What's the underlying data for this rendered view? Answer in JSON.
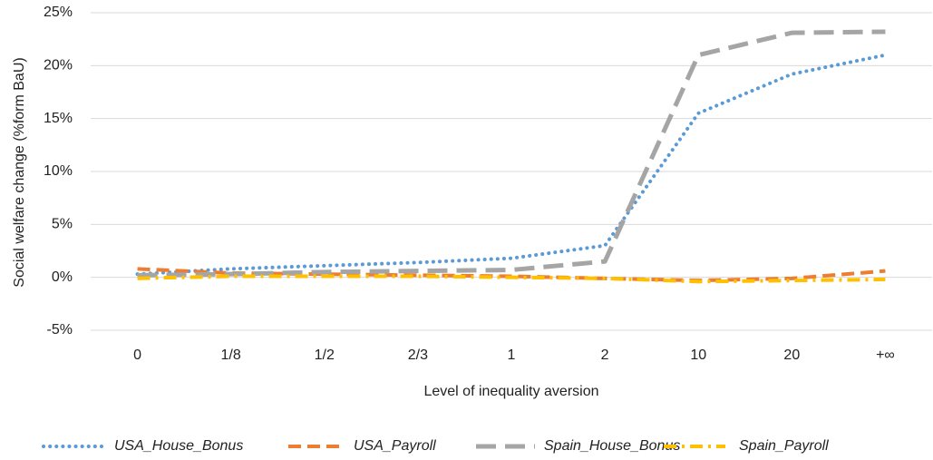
{
  "chart_data": {
    "type": "line",
    "categories": [
      "0",
      "1/8",
      "1/2",
      "2/3",
      "1",
      "2",
      "10",
      "20",
      "+∞"
    ],
    "x_label": "Level of inequality aversion",
    "y_label": "Social welfare change  (%form BaU)",
    "ylim": [
      -5,
      25
    ],
    "yticks": [
      {
        "value": -5,
        "label": "-5%"
      },
      {
        "value": 0,
        "label": "0%"
      },
      {
        "value": 5,
        "label": "5%"
      },
      {
        "value": 10,
        "label": "10%"
      },
      {
        "value": 15,
        "label": "15%"
      },
      {
        "value": 20,
        "label": "20%"
      },
      {
        "value": 25,
        "label": "25%"
      }
    ],
    "grid": true,
    "legend": "bottom",
    "series": [
      {
        "name": "USA_House_Bonus",
        "color": "#5b9bd5",
        "values": [
          0.3,
          0.8,
          1.1,
          1.4,
          1.8,
          3.0,
          15.5,
          19.2,
          21.0
        ]
      },
      {
        "name": "USA_Payroll",
        "color": "#ed7d31",
        "values": [
          0.8,
          0.4,
          0.3,
          0.2,
          0.1,
          -0.1,
          -0.3,
          -0.1,
          0.6
        ]
      },
      {
        "name": "Spain_House_Bonus",
        "color": "#a5a5a5",
        "values": [
          0.2,
          0.3,
          0.5,
          0.6,
          0.7,
          1.5,
          21.0,
          23.1,
          23.2
        ]
      },
      {
        "name": "Spain_Payroll",
        "color": "#ffc000",
        "values": [
          -0.1,
          0.1,
          0.1,
          0.1,
          0.0,
          -0.1,
          -0.4,
          -0.3,
          -0.2
        ]
      }
    ]
  }
}
